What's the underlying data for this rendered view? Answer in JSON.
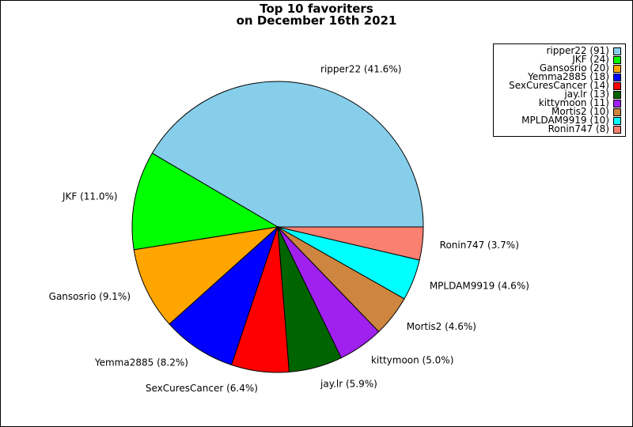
{
  "chart_data": {
    "type": "pie",
    "title_lines": [
      "Top 10 favoriters",
      "on December 16th 2021"
    ],
    "slices": [
      {
        "name": "ripper22",
        "count": 91,
        "percent_label": "41.6%",
        "color": "#87CEEB"
      },
      {
        "name": "JKF",
        "count": 24,
        "percent_label": "11.0%",
        "color": "#00FF00"
      },
      {
        "name": "Gansosrio",
        "count": 20,
        "percent_label": "9.1%",
        "color": "#FFA500"
      },
      {
        "name": "Yemma2885",
        "count": 18,
        "percent_label": "8.2%",
        "color": "#0000FF"
      },
      {
        "name": "SexCuresCancer",
        "count": 14,
        "percent_label": "6.4%",
        "color": "#FF0000"
      },
      {
        "name": "jay.lr",
        "count": 13,
        "percent_label": "5.9%",
        "color": "#006400"
      },
      {
        "name": "kittymoon",
        "count": 11,
        "percent_label": "5.0%",
        "color": "#A020F0"
      },
      {
        "name": "Mortis2",
        "count": 10,
        "percent_label": "4.6%",
        "color": "#CD853F"
      },
      {
        "name": "MPLDAM9919",
        "count": 10,
        "percent_label": "4.6%",
        "color": "#00FFFF"
      },
      {
        "name": "Ronin747",
        "count": 8,
        "percent_label": "3.7%",
        "color": "#FA8072"
      }
    ],
    "legend_position": "top-right"
  }
}
